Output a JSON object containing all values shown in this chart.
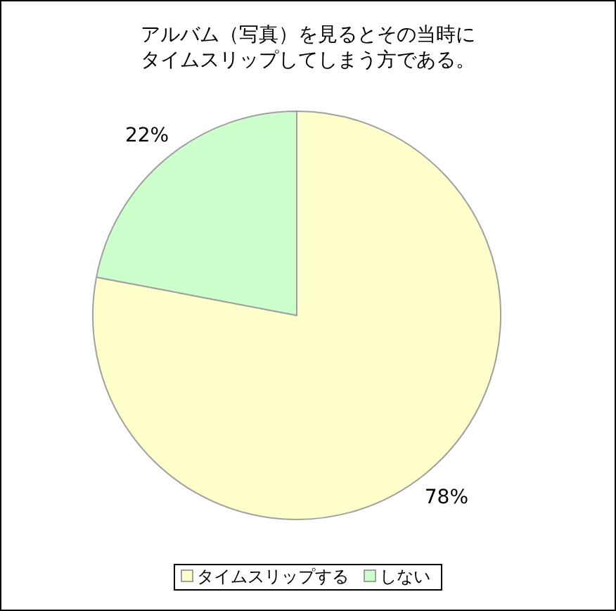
{
  "chart_data": {
    "type": "pie",
    "title": "アルバム（写真）を見るとその当時にタイムスリップしてしまう方である。",
    "categories": [
      "タイムスリップする",
      "しない"
    ],
    "values": [
      78,
      22
    ],
    "value_labels": [
      "78%",
      "22%"
    ],
    "colors": [
      "#ffffcc",
      "#ccffcc"
    ],
    "legend": "bottom"
  }
}
